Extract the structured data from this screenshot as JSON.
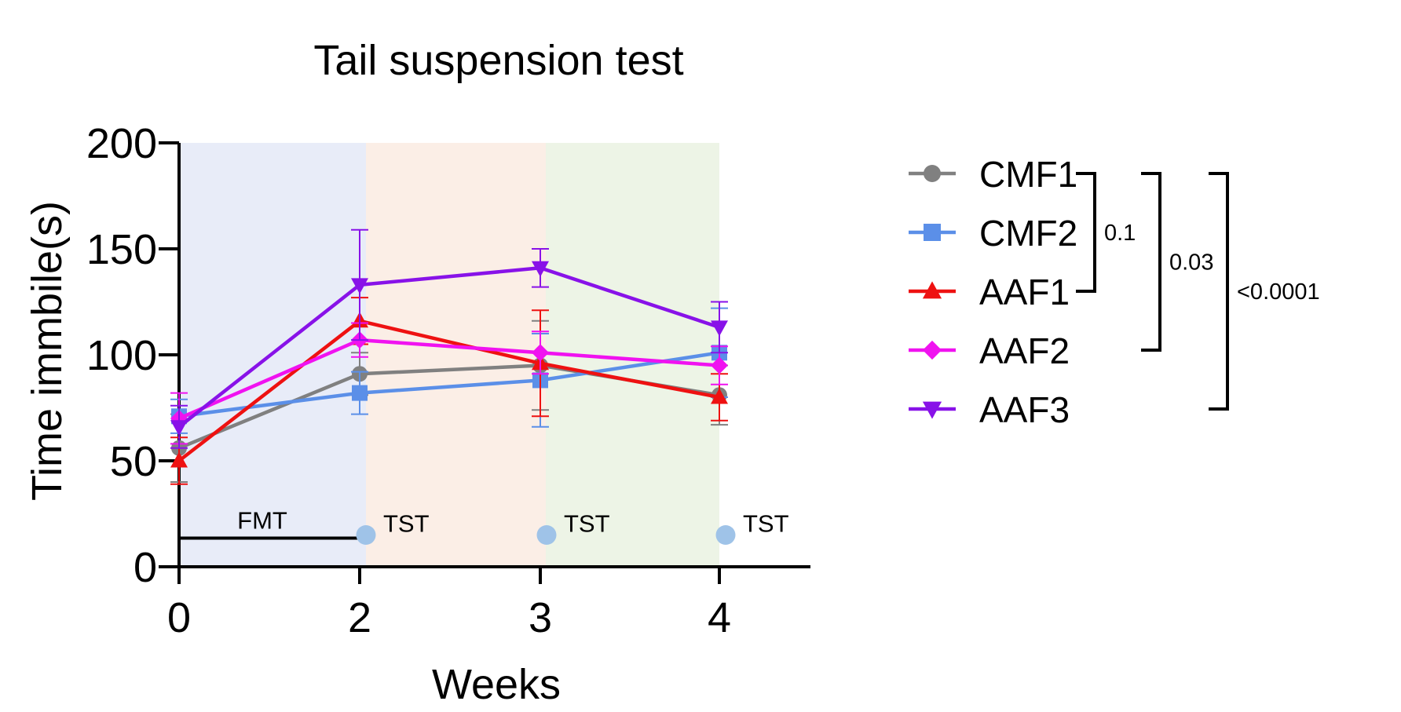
{
  "chart_data": {
    "type": "line",
    "title": "Tail suspension test",
    "xlabel": "Weeks",
    "ylabel": "Time immbile(s)",
    "ylim": [
      0,
      200
    ],
    "yticks": [
      0,
      50,
      100,
      150,
      200
    ],
    "x": [
      0,
      2,
      3,
      4
    ],
    "x_tick_labels": [
      "0",
      "2",
      "3",
      "4"
    ],
    "grid": false,
    "legend_position": "right",
    "periods": [
      {
        "name": "period-1",
        "from": 0,
        "to": 2,
        "color": "#e8ecf8"
      },
      {
        "name": "period-2",
        "from": 2,
        "to": 3,
        "color": "#fbeee6"
      },
      {
        "name": "period-3",
        "from": 3,
        "to": 4,
        "color": "#edf4e6"
      }
    ],
    "fmt_label": "FMT",
    "tst_label": "TST",
    "tst_weeks": [
      2,
      3,
      4
    ],
    "series": [
      {
        "name": "CMF1",
        "color": "#808080",
        "marker": "circle",
        "values": [
          56,
          91,
          95,
          81
        ],
        "err": [
          16,
          10,
          21,
          14
        ]
      },
      {
        "name": "CMF2",
        "color": "#5b8fe8",
        "marker": "square",
        "values": [
          71,
          82,
          88,
          101
        ],
        "err": [
          8,
          10,
          22,
          21
        ]
      },
      {
        "name": "AAF1",
        "color": "#ee1111",
        "marker": "triangle-up",
        "values": [
          50,
          116,
          96,
          80
        ],
        "err": [
          11,
          11,
          25,
          11
        ]
      },
      {
        "name": "AAF2",
        "color": "#f012f0",
        "marker": "diamond",
        "values": [
          70,
          107,
          101,
          95
        ],
        "err": [
          12,
          8,
          10,
          9
        ]
      },
      {
        "name": "AAF3",
        "color": "#8812e8",
        "marker": "triangle-down",
        "values": [
          66,
          133,
          141,
          113
        ],
        "err": [
          10,
          26,
          9,
          12
        ]
      }
    ],
    "significance": [
      {
        "from": "CMF1",
        "to": "AAF1",
        "label": "0.1"
      },
      {
        "from": "CMF1",
        "to": "AAF2",
        "label": "0.03"
      },
      {
        "from": "CMF1",
        "to": "AAF3",
        "label": "<0.0001"
      }
    ]
  }
}
